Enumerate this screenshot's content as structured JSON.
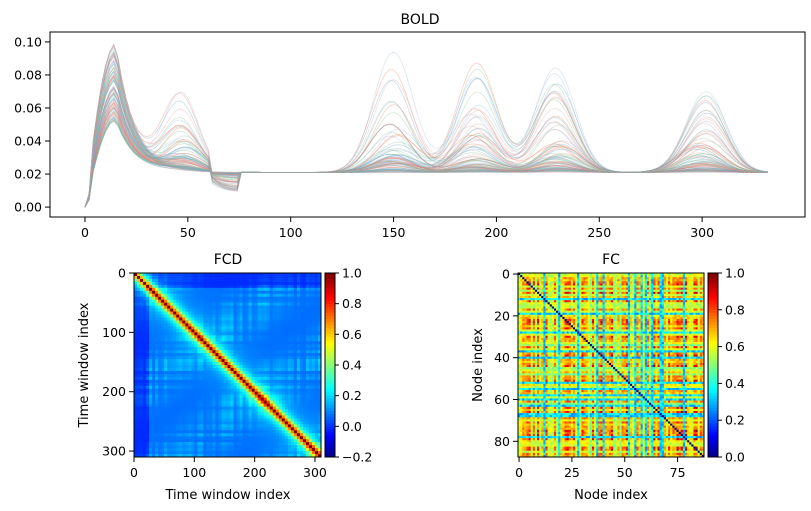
{
  "chart_data": [
    {
      "type": "line",
      "title": "BOLD",
      "xlabel": "",
      "ylabel": "",
      "xlim": [
        -17,
        350
      ],
      "ylim": [
        -0.006,
        0.106
      ],
      "xticks": [
        "0",
        "50",
        "100",
        "150",
        "200",
        "250",
        "300"
      ],
      "yticks": [
        "0.00",
        "0.02",
        "0.04",
        "0.06",
        "0.08",
        "0.10"
      ],
      "n_series_approx": 88,
      "x_range": [
        0,
        333
      ],
      "series_summary": {
        "start_value": 0.0,
        "initial_peak": {
          "x": 15,
          "range": [
            0.05,
            0.1
          ]
        },
        "baseline_after_transient": 0.021,
        "oscillation_peaks_x": [
          48,
          150,
          190,
          230,
          300
        ],
        "max_excursion": 0.1
      },
      "colors": [
        "#e8785a",
        "#5b9ec9",
        "#7fbf8f",
        "#d9a0a0",
        "#9ab4d6"
      ]
    },
    {
      "type": "heatmap",
      "title": "FCD",
      "xlabel": "Time window index",
      "ylabel": "Time window index",
      "size": 310,
      "xticks": [
        "0",
        "100",
        "200",
        "300"
      ],
      "yticks": [
        "0",
        "100",
        "200",
        "300"
      ],
      "colorbar": {
        "min": -0.2,
        "max": 1.0,
        "ticks": [
          "1.0",
          "0.8",
          "0.6",
          "0.4",
          "0.2",
          "0.0",
          "−0.2"
        ]
      },
      "colormap": "jet",
      "description_values": {
        "diagonal": 1.0,
        "background_mean": 0.1
      }
    },
    {
      "type": "heatmap",
      "title": "FC",
      "xlabel": "Node index",
      "ylabel": "Node index",
      "size": 88,
      "xticks": [
        "0",
        "25",
        "50",
        "75"
      ],
      "yticks": [
        "0",
        "20",
        "40",
        "60",
        "80"
      ],
      "colorbar": {
        "min": 0.0,
        "max": 1.0,
        "ticks": [
          "1.0",
          "0.8",
          "0.6",
          "0.4",
          "0.2",
          "0.0"
        ]
      },
      "colormap": "jet",
      "description_values": {
        "diagonal": 0.0,
        "off_diagonal_mean": 0.68
      }
    }
  ]
}
